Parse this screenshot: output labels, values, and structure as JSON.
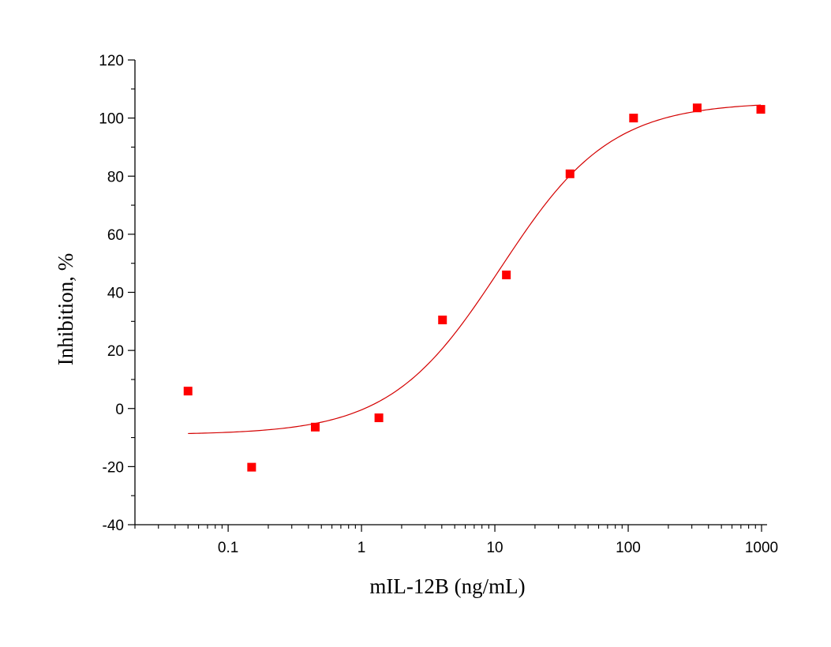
{
  "chart_data": {
    "type": "scatter",
    "title": "",
    "xlabel": "mIL-12B (ng/mL)",
    "ylabel": "Inhibition, %",
    "x_scale": "log",
    "xlim": [
      0.02,
      1100
    ],
    "ylim": [
      -40,
      120
    ],
    "x_ticks": [
      0.1,
      1,
      10,
      100,
      1000
    ],
    "x_tick_labels": [
      "0.1",
      "1",
      "10",
      "100",
      "1000"
    ],
    "y_ticks": [
      -40,
      -20,
      0,
      20,
      40,
      60,
      80,
      100,
      120
    ],
    "y_tick_labels": [
      "-40",
      "-20",
      "0",
      "20",
      "40",
      "60",
      "80",
      "100",
      "120"
    ],
    "grid": false,
    "legend": "none",
    "series": [
      {
        "marker": "square",
        "color": "#ff0000",
        "x": [
          0.05,
          0.15,
          0.45,
          1.35,
          4.05,
          12.2,
          36.6,
          109.7,
          329,
          987
        ],
        "y": [
          6,
          -20.2,
          -6.4,
          -3.2,
          30.5,
          46,
          80.8,
          100,
          103.5,
          103
        ]
      }
    ],
    "fit_curve": {
      "type": "four-parameter-logistic",
      "color": "#d40000",
      "bottom": -9,
      "top": 105.5,
      "ec50": 11,
      "hill": 1.05,
      "x_range": [
        0.05,
        987
      ]
    }
  }
}
